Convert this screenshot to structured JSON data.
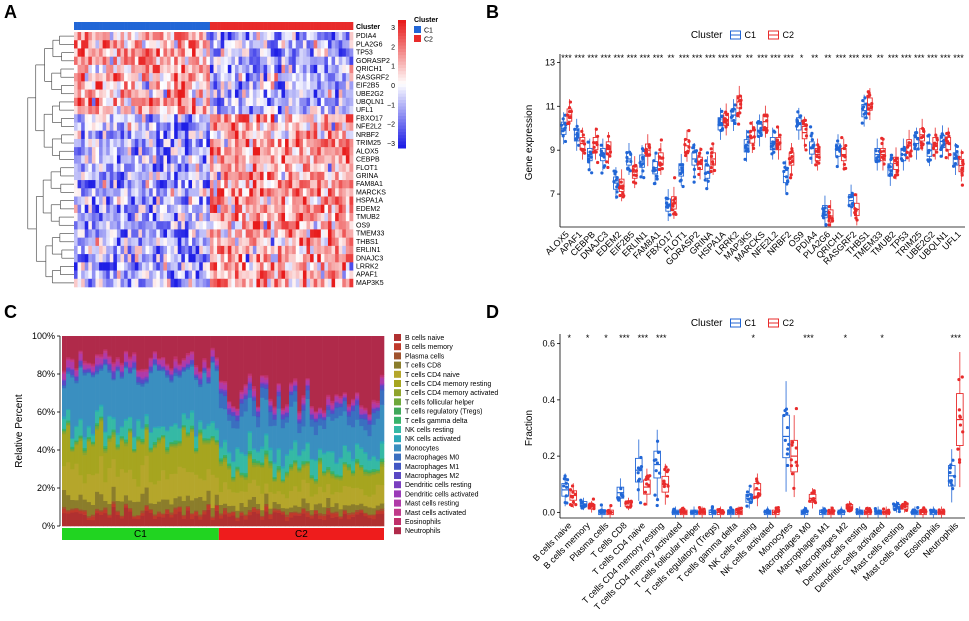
{
  "chart_data": [
    {
      "panel": "A",
      "type": "heatmap",
      "column_annotation_label": "Cluster",
      "legend": {
        "title": "Cluster",
        "entries": [
          "C1",
          "C2"
        ],
        "colors": {
          "C1": "#2166d6",
          "C2": "#e82b2b"
        },
        "color_scale_ticks": [
          "3",
          "2",
          "1",
          "0",
          "−1",
          "−2",
          "−3"
        ],
        "color_low": "#1f1fe6",
        "color_mid": "#ffffff",
        "color_high": "#e81b1b"
      },
      "genes": [
        "PDIA4",
        "PLA2G6",
        "TP53",
        "GORASP2",
        "QRICH1",
        "RASGRF2",
        "EIF2B5",
        "UBE2G2",
        "UBQLN1",
        "UFL1",
        "FBXO17",
        "NFE2L2",
        "NRBF2",
        "TRIM25",
        "ALOX5",
        "CEBPB",
        "FLOT1",
        "GRINA",
        "FAM8A1",
        "MARCKS",
        "HSPA1A",
        "EDEM2",
        "TMUB2",
        "OS9",
        "TMEM33",
        "THBS1",
        "ERLIN1",
        "DNAJC3",
        "LRRK2",
        "APAF1",
        "MAP3K5"
      ],
      "n_samples_C1": 38,
      "n_samples_C2": 40
    },
    {
      "panel": "B",
      "type": "box",
      "legend_title": "Cluster",
      "legend_entries": [
        "C1",
        "C2"
      ],
      "colors": {
        "C1": "#2166d6",
        "C2": "#e82b2b"
      },
      "ylabel": "Gene expression",
      "yticks": [
        "7",
        "9",
        "11",
        "13"
      ],
      "ylim": [
        5.5,
        13.2
      ],
      "categories": [
        "ALOX5",
        "APAF1",
        "CEBPB",
        "DNAJC3",
        "EDEM2",
        "EIF2B5",
        "ERLIN1",
        "FAM8A1",
        "FBXO17",
        "FLOT1",
        "GORASP2",
        "GRINA",
        "HSPA1A",
        "LRRK2",
        "MAP3K5",
        "MARCKS",
        "NFE2L2",
        "NRBF2",
        "OS9",
        "PDIA4",
        "PLA2G6",
        "QRICH1",
        "RASGRF2",
        "THBS1",
        "TMEM33",
        "TMUB2",
        "TP53",
        "TRIM25",
        "UBE2G2",
        "UBQLN1",
        "UFL1"
      ],
      "significance": [
        "***",
        "***",
        "***",
        "***",
        "***",
        "***",
        "***",
        "***",
        "**",
        "***",
        "***",
        "***",
        "***",
        "***",
        "**",
        "***",
        "***",
        "***",
        "*",
        "**",
        "**",
        "***",
        "***",
        "***",
        "**",
        "***",
        "***",
        "***",
        "***",
        "***",
        "***"
      ],
      "medians_C1": [
        10.0,
        9.7,
        8.8,
        8.8,
        7.5,
        8.6,
        8.5,
        8.2,
        6.5,
        8.1,
        8.6,
        8.0,
        10.2,
        10.6,
        9.2,
        9.9,
        9.3,
        7.8,
        10.2,
        9.1,
        6.2,
        9.0,
        6.7,
        10.8,
        8.8,
        8.1,
        8.8,
        9.3,
        9.0,
        9.4,
        8.6
      ],
      "medians_C2": [
        10.6,
        9.3,
        9.3,
        9.1,
        7.4,
        8.0,
        9.0,
        8.6,
        6.6,
        9.2,
        8.4,
        8.6,
        10.4,
        11.2,
        9.6,
        10.3,
        9.3,
        8.6,
        9.8,
        8.8,
        6.0,
        8.8,
        6.3,
        11.1,
        8.8,
        8.4,
        9.2,
        9.7,
        9.3,
        9.3,
        8.3
      ]
    },
    {
      "panel": "C",
      "type": "stacked-bar",
      "ylabel": "Relative Percent",
      "yticks": [
        "0%",
        "20%",
        "40%",
        "60%",
        "80%",
        "100%"
      ],
      "groups": [
        {
          "name": "C1",
          "color": "#21d421"
        },
        {
          "name": "C2",
          "color": "#ee1c1c"
        }
      ],
      "n_samples_C1": 38,
      "n_samples_C2": 40,
      "cell_types": [
        "B cells naive",
        "B cells memory",
        "Plasma cells",
        "T cells CD8",
        "T cells CD4 naive",
        "T cells CD4 memory resting",
        "T cells CD4 memory activated",
        "T cells follicular helper",
        "T cells regulatory (Tregs)",
        "T cells gamma delta",
        "NK cells resting",
        "NK cells activated",
        "Monocytes",
        "Macrophages M0",
        "Macrophages M1",
        "Macrophages M2",
        "Dendritic cells resting",
        "Dendritic cells activated",
        "Mast cells resting",
        "Mast cells activated",
        "Eosinophils",
        "Neutrophils"
      ],
      "colors": [
        "#b03030",
        "#c0392b",
        "#a0522d",
        "#8b7d2b",
        "#b5a62b",
        "#a6a51f",
        "#8fa32b",
        "#6ea83a",
        "#3fa85a",
        "#37b36a",
        "#35b9a5",
        "#2aa9b8",
        "#3a8fc0",
        "#3a6fc0",
        "#4257c4",
        "#5a49c4",
        "#7a3fc0",
        "#9a3ab8",
        "#b03aa8",
        "#c03a8a",
        "#c0306a",
        "#b02a4a"
      ],
      "mean_C1": [
        0.07,
        0.02,
        0.01,
        0.07,
        0.16,
        0.18,
        0.01,
        0.01,
        0.005,
        0.01,
        0.07,
        0.01,
        0.28,
        0.01,
        0.005,
        0.02,
        0.005,
        0.005,
        0.03,
        0.01,
        0.01,
        0.14
      ],
      "mean_C2": [
        0.06,
        0.02,
        0.01,
        0.04,
        0.09,
        0.1,
        0.01,
        0.01,
        0.005,
        0.01,
        0.08,
        0.01,
        0.2,
        0.06,
        0.005,
        0.02,
        0.005,
        0.005,
        0.02,
        0.01,
        0.01,
        0.35
      ]
    },
    {
      "panel": "D",
      "type": "box",
      "legend_title": "Cluster",
      "legend_entries": [
        "C1",
        "C2"
      ],
      "colors": {
        "C1": "#2166d6",
        "C2": "#e82b2b"
      },
      "ylabel": "Fraction",
      "yticks": [
        "0.0",
        "0.2",
        "0.4",
        "0.6"
      ],
      "ylim": [
        -0.02,
        0.62
      ],
      "categories": [
        "B cells naive",
        "B cells memory",
        "Plasma cells",
        "T cells CD8",
        "T cells CD4 naive",
        "T cells CD4 memory resting",
        "T cells CD4 memory activated",
        "T cells follicular helper",
        "T cells regulatory (Tregs)",
        "T cells gamma delta",
        "NK cells resting",
        "NK cells activated",
        "Monocytes",
        "Macrophages M0",
        "Macrophages M1",
        "Macrophages M2",
        "Dendritic cells resting",
        "Dendritic cells activated",
        "Mast cells resting",
        "Mast cells activated",
        "Eosinophils",
        "Neutrophils"
      ],
      "significance": [
        "*",
        "*",
        "*",
        "***",
        "***",
        "***",
        "",
        "",
        "",
        "",
        "*",
        "",
        "",
        "***",
        "",
        "*",
        "",
        "*",
        "",
        "",
        "",
        "***"
      ],
      "medians_C1": [
        0.08,
        0.03,
        0.0,
        0.07,
        0.15,
        0.17,
        0.0,
        0.0,
        0.0,
        0.0,
        0.05,
        0.0,
        0.27,
        0.0,
        0.0,
        0.0,
        0.0,
        0.0,
        0.02,
        0.0,
        0.0,
        0.13
      ],
      "medians_C2": [
        0.06,
        0.02,
        0.0,
        0.03,
        0.09,
        0.1,
        0.0,
        0.0,
        0.0,
        0.0,
        0.08,
        0.0,
        0.2,
        0.05,
        0.0,
        0.02,
        0.0,
        0.0,
        0.02,
        0.0,
        0.0,
        0.33
      ]
    }
  ],
  "panel_labels": [
    "A",
    "B",
    "C",
    "D"
  ]
}
